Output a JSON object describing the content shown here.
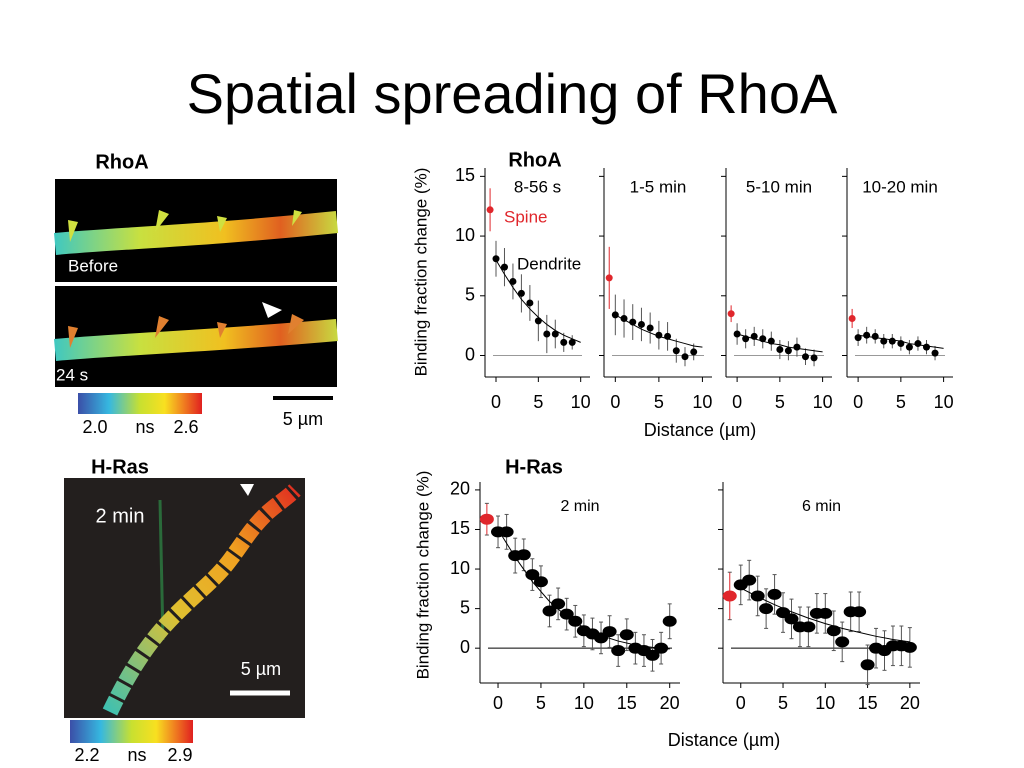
{
  "title": "Spatial spreading of RhoA",
  "images": [
    {
      "label": "RhoA",
      "panels": [
        {
          "caption": "Before"
        },
        {
          "caption": "24 s"
        }
      ],
      "scale_bar": "5 µm",
      "colorbar": {
        "min": "2.0",
        "unit": "ns",
        "max": "2.6"
      }
    },
    {
      "label": "H-Ras",
      "panels": [
        {
          "caption": "2 min"
        }
      ],
      "scale_bar": "5 µm",
      "colorbar": {
        "min": "2.2",
        "unit": "ns",
        "max": "2.9"
      }
    }
  ],
  "chart_data": [
    {
      "type": "scatter",
      "title": "RhoA",
      "y_label": "Binding fraction change (%)",
      "x_label": "Distance (µm)",
      "ylim": [
        -1.8,
        15.7
      ],
      "yticks": [
        0,
        5,
        10,
        15
      ],
      "xlim": [
        -1.3,
        11.1
      ],
      "xticks": [
        0,
        5,
        10
      ],
      "reference_line": 0,
      "subplots": [
        {
          "title": "8-56 s",
          "annotations": [
            {
              "text": "Spine",
              "color": "#e0262b"
            },
            {
              "text": "Dendrite",
              "color": "#000000"
            }
          ],
          "series": [
            {
              "mode": "markers",
              "color": "#e0262b",
              "x": [
                -0.7
              ],
              "values": [
                12.2
              ],
              "errors": [
                1.8
              ]
            },
            {
              "mode": "markers",
              "color": "#000000",
              "x": [
                0,
                1,
                2,
                3,
                4,
                5,
                6,
                7,
                8,
                9
              ],
              "values": [
                8.1,
                7.4,
                6.2,
                5.2,
                4.4,
                2.9,
                1.8,
                1.8,
                1.1,
                1.1
              ],
              "errors": [
                1.5,
                1.6,
                1.5,
                1.6,
                1.5,
                1.7,
                1.6,
                1.2,
                0.8,
                0.6
              ]
            },
            {
              "mode": "line",
              "color": "#000000",
              "x": [
                0,
                1,
                2,
                3,
                4,
                5,
                6,
                7,
                8,
                9,
                10
              ],
              "values": [
                8.0,
                6.8,
                5.7,
                4.7,
                3.9,
                3.2,
                2.6,
                2.1,
                1.7,
                1.4,
                1.1
              ]
            }
          ]
        },
        {
          "title": "1-5 min",
          "series": [
            {
              "mode": "markers",
              "color": "#e0262b",
              "x": [
                -0.7
              ],
              "values": [
                6.5
              ],
              "errors": [
                2.6
              ]
            },
            {
              "mode": "markers",
              "color": "#000000",
              "x": [
                0,
                1,
                2,
                3,
                4,
                5,
                6,
                7,
                8,
                9
              ],
              "values": [
                3.4,
                3.1,
                2.8,
                2.6,
                2.3,
                1.7,
                1.6,
                0.4,
                -0.1,
                0.3
              ],
              "errors": [
                1.7,
                1.6,
                1.5,
                1.4,
                1.3,
                1.2,
                1.2,
                1.0,
                0.8,
                0.7
              ]
            },
            {
              "mode": "line",
              "color": "#000000",
              "x": [
                0,
                1,
                2,
                3,
                4,
                5,
                6,
                7,
                8,
                9,
                10
              ],
              "values": [
                3.4,
                3.0,
                2.6,
                2.2,
                1.9,
                1.6,
                1.4,
                1.2,
                1.0,
                0.8,
                0.7
              ]
            }
          ]
        },
        {
          "title": "5-10 min",
          "series": [
            {
              "mode": "markers",
              "color": "#e0262b",
              "x": [
                -0.7
              ],
              "values": [
                3.5
              ],
              "errors": [
                0.7
              ]
            },
            {
              "mode": "markers",
              "color": "#000000",
              "x": [
                0,
                1,
                2,
                3,
                4,
                5,
                6,
                7,
                8,
                9
              ],
              "values": [
                1.8,
                1.4,
                1.6,
                1.4,
                1.2,
                0.5,
                0.4,
                0.7,
                -0.1,
                -0.2
              ],
              "errors": [
                0.9,
                0.8,
                0.8,
                0.8,
                0.8,
                0.8,
                0.8,
                0.8,
                0.7,
                0.7
              ]
            },
            {
              "mode": "line",
              "color": "#000000",
              "x": [
                0,
                1,
                2,
                3,
                4,
                5,
                6,
                7,
                8,
                9,
                10
              ],
              "values": [
                1.8,
                1.6,
                1.4,
                1.2,
                1.0,
                0.9,
                0.7,
                0.6,
                0.5,
                0.4,
                0.3
              ]
            }
          ]
        },
        {
          "title": "10-20 min",
          "series": [
            {
              "mode": "markers",
              "color": "#e0262b",
              "x": [
                -0.7
              ],
              "values": [
                3.1
              ],
              "errors": [
                0.8
              ]
            },
            {
              "mode": "markers",
              "color": "#000000",
              "x": [
                0,
                1,
                2,
                3,
                4,
                5,
                6,
                7,
                8,
                9
              ],
              "values": [
                1.5,
                1.7,
                1.6,
                1.2,
                1.2,
                1.0,
                0.7,
                1.0,
                0.7,
                0.2
              ],
              "errors": [
                0.7,
                0.7,
                0.6,
                0.6,
                0.6,
                0.6,
                0.6,
                0.6,
                0.6,
                0.6
              ]
            },
            {
              "mode": "line",
              "color": "#000000",
              "x": [
                0,
                1,
                2,
                3,
                4,
                5,
                6,
                7,
                8,
                9,
                10
              ],
              "values": [
                1.7,
                1.6,
                1.5,
                1.4,
                1.3,
                1.2,
                1.0,
                0.9,
                0.8,
                0.7,
                0.6
              ]
            }
          ]
        }
      ]
    },
    {
      "type": "scatter",
      "title": "H-Ras",
      "y_label": "Binding fraction change (%)",
      "x_label": "Distance (µm)",
      "ylim": [
        -4.4,
        21
      ],
      "yticks": [
        0,
        5,
        10,
        15,
        20
      ],
      "xlim": [
        -2.1,
        21.2
      ],
      "xticks": [
        0,
        5,
        10,
        15,
        20
      ],
      "reference_line": 0,
      "subplots": [
        {
          "title": "2 min",
          "series": [
            {
              "mode": "markers",
              "color": "#e0262b",
              "x": [
                -1.3
              ],
              "values": [
                16.3
              ],
              "errors": [
                2.0
              ]
            },
            {
              "mode": "markers",
              "color": "#000000",
              "x": [
                0,
                1,
                2,
                3,
                4,
                5,
                6,
                7,
                8,
                9,
                10,
                11,
                12,
                13,
                14,
                15,
                16,
                17,
                18,
                19,
                20
              ],
              "values": [
                14.7,
                14.7,
                11.7,
                11.8,
                9.3,
                8.4,
                4.7,
                5.6,
                4.3,
                3.4,
                2.2,
                1.8,
                1.3,
                2.1,
                -0.3,
                1.7,
                0.0,
                -0.3,
                -0.9,
                0.0,
                3.4
              ],
              "errors": [
                2.0,
                2.2,
                2.2,
                2.0,
                2.0,
                2.0,
                2.0,
                2.0,
                2.0,
                2.0,
                2.0,
                2.0,
                2.0,
                2.0,
                2.0,
                2.0,
                2.0,
                2.0,
                2.0,
                2.0,
                2.2
              ]
            },
            {
              "mode": "line",
              "color": "#000000",
              "x": [
                0,
                2,
                4,
                6,
                8,
                10,
                12,
                14,
                16,
                18,
                20
              ],
              "values": [
                15.0,
                11.5,
                8.4,
                5.9,
                4.0,
                2.6,
                1.6,
                0.9,
                0.4,
                0.1,
                -0.1
              ]
            }
          ]
        },
        {
          "title": "6 min",
          "series": [
            {
              "mode": "markers",
              "color": "#e0262b",
              "x": [
                -1.3
              ],
              "values": [
                6.6
              ],
              "errors": [
                3.0
              ]
            },
            {
              "mode": "markers",
              "color": "#000000",
              "x": [
                0,
                1,
                2,
                3,
                4,
                5,
                6,
                7,
                8,
                9,
                10,
                11,
                12,
                13,
                14,
                15,
                16,
                17,
                18,
                19,
                20
              ],
              "values": [
                8.0,
                8.6,
                6.6,
                5.0,
                6.8,
                4.5,
                3.7,
                2.7,
                2.7,
                4.4,
                4.4,
                2.2,
                0.8,
                4.6,
                4.6,
                -2.1,
                0.0,
                -0.3,
                0.3,
                0.3,
                0.1
              ],
              "errors": [
                2.5,
                2.5,
                2.5,
                2.5,
                2.5,
                2.5,
                2.5,
                2.5,
                2.5,
                2.5,
                2.5,
                2.5,
                2.5,
                2.5,
                2.5,
                2.5,
                2.5,
                2.5,
                2.5,
                2.5,
                2.5
              ]
            },
            {
              "mode": "line",
              "color": "#000000",
              "x": [
                0,
                2,
                4,
                6,
                8,
                10,
                12,
                14,
                16,
                18,
                20
              ],
              "values": [
                7.6,
                6.5,
                5.5,
                4.6,
                3.8,
                3.1,
                2.5,
                2.0,
                1.5,
                1.1,
                0.8
              ]
            }
          ]
        }
      ]
    }
  ]
}
